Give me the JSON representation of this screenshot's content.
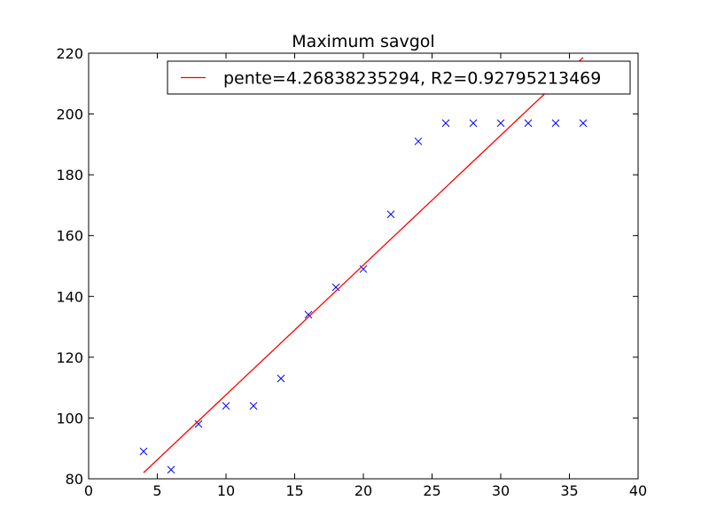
{
  "chart_data": {
    "type": "scatter",
    "title": "Maximum savgol",
    "xlabel": "",
    "ylabel": "",
    "xlim": [
      0,
      40
    ],
    "ylim": [
      80,
      220
    ],
    "xticks": [
      0,
      5,
      10,
      15,
      20,
      25,
      30,
      35,
      40
    ],
    "yticks": [
      80,
      100,
      120,
      140,
      160,
      180,
      200,
      220
    ],
    "grid": false,
    "legend_position": "top-right",
    "series": [
      {
        "kind": "scatter",
        "marker": "x",
        "color": "#0000ff",
        "x": [
          4,
          6,
          8,
          10,
          12,
          14,
          16,
          18,
          20,
          22,
          24,
          26,
          28,
          30,
          32,
          34,
          36
        ],
        "y": [
          89,
          83,
          98,
          104,
          104,
          113,
          134,
          143,
          149,
          167,
          191,
          197,
          197,
          197,
          197,
          197,
          197
        ]
      },
      {
        "kind": "line",
        "name": "pente=4.26838235294, R2=0.92795213469",
        "color": "#ff0000",
        "x": [
          4,
          36
        ],
        "y": [
          82,
          218.6
        ]
      }
    ]
  }
}
